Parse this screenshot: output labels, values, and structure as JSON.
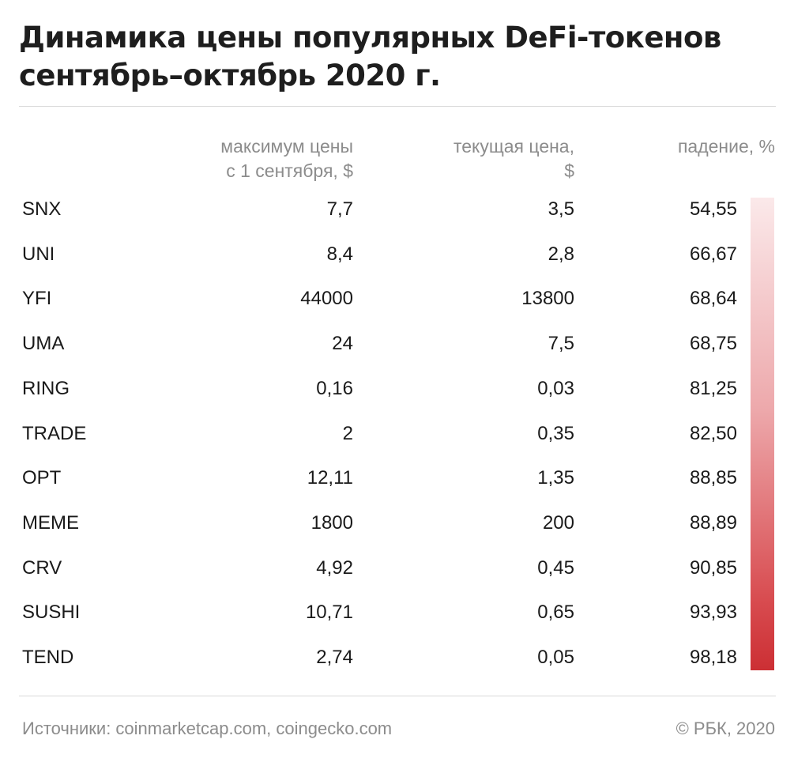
{
  "title": {
    "line1": "Динамика цены популярных DeFi-токенов",
    "line2": "сентябрь–октябрь 2020 г."
  },
  "headers": {
    "max_line1": "максимум цены",
    "max_line2": "с 1 сентября, $",
    "cur_line1": "текущая цена,",
    "cur_line2": "$",
    "drop": "падение, %"
  },
  "colors": {
    "gradient_top": "#fbe9ea",
    "gradient_bottom": "#cc2f34",
    "muted_text": "#8c8c8c"
  },
  "chart_data": {
    "type": "table",
    "columns": [
      "",
      "максимум цены с 1 сентября, $",
      "текущая цена, $",
      "падение, %"
    ],
    "rows": [
      {
        "name": "SNX",
        "max": "7,7",
        "current": "3,5",
        "drop": "54,55"
      },
      {
        "name": "UNI",
        "max": "8,4",
        "current": "2,8",
        "drop": "66,67"
      },
      {
        "name": "YFI",
        "max": "44000",
        "current": "13800",
        "drop": "68,64"
      },
      {
        "name": "UMA",
        "max": "24",
        "current": "7,5",
        "drop": "68,75"
      },
      {
        "name": "RING",
        "max": "0,16",
        "current": "0,03",
        "drop": "81,25"
      },
      {
        "name": "TRADE",
        "max": "2",
        "current": "0,35",
        "drop": "82,50"
      },
      {
        "name": "OPT",
        "max": "12,11",
        "current": "1,35",
        "drop": "88,85"
      },
      {
        "name": "MEME",
        "max": "1800",
        "current": "200",
        "drop": "88,89"
      },
      {
        "name": "CRV",
        "max": "4,92",
        "current": "0,45",
        "drop": "90,85"
      },
      {
        "name": "SUSHI",
        "max": "10,71",
        "current": "0,65",
        "drop": "93,93"
      },
      {
        "name": "TEND",
        "max": "2,74",
        "current": "0,05",
        "drop": "98,18"
      }
    ]
  },
  "footer": {
    "sources": "Источники: coinmarketcap.com, coingecko.com",
    "copyright": "© РБК, 2020"
  }
}
